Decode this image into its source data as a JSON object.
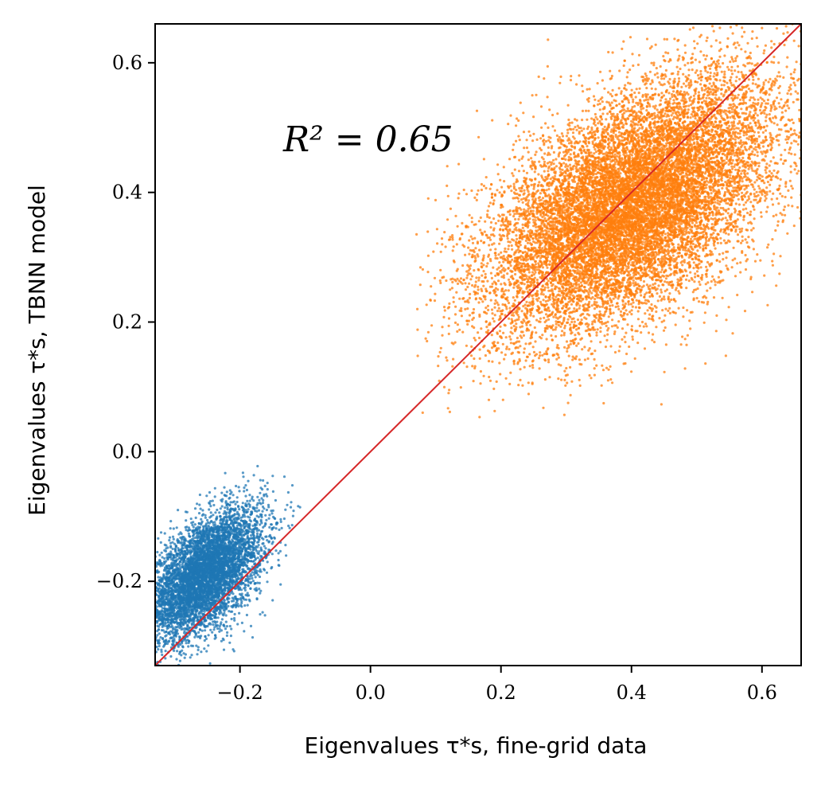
{
  "chart_data": {
    "type": "scatter",
    "xlabel": "Eigenvalues τ*s, fine-grid data",
    "ylabel": "Eigenvalues τ*s, TBNN model",
    "xlim": [
      -0.33,
      0.66
    ],
    "ylim": [
      -0.33,
      0.66
    ],
    "xticks": [
      -0.2,
      0.0,
      0.2,
      0.4,
      0.6
    ],
    "yticks": [
      -0.2,
      0.0,
      0.2,
      0.4,
      0.6
    ],
    "xtick_labels": [
      "−0.2",
      "0.0",
      "0.2",
      "0.4",
      "0.6"
    ],
    "ytick_labels": [
      "−0.2",
      "0.0",
      "0.2",
      "0.4",
      "0.6"
    ],
    "annotation": "R² = 0.65",
    "reference_line": {
      "x": [
        -0.33,
        0.66
      ],
      "y": [
        -0.33,
        0.66
      ],
      "color": "#d62728"
    },
    "series": [
      {
        "color": "#1f77b4",
        "center": [
          -0.255,
          -0.19
        ],
        "spread": [
          0.045,
          0.05
        ],
        "extent_x": [
          -0.33,
          -0.05
        ],
        "extent_y": [
          -0.33,
          -0.01
        ],
        "n_points": 6000
      },
      {
        "color": "#ff7f0e",
        "center": [
          0.4,
          0.38
        ],
        "spread": [
          0.11,
          0.1
        ],
        "extent_x": [
          0.07,
          0.66
        ],
        "extent_y": [
          0.05,
          0.66
        ],
        "n_points": 14000
      }
    ],
    "grid": false
  }
}
